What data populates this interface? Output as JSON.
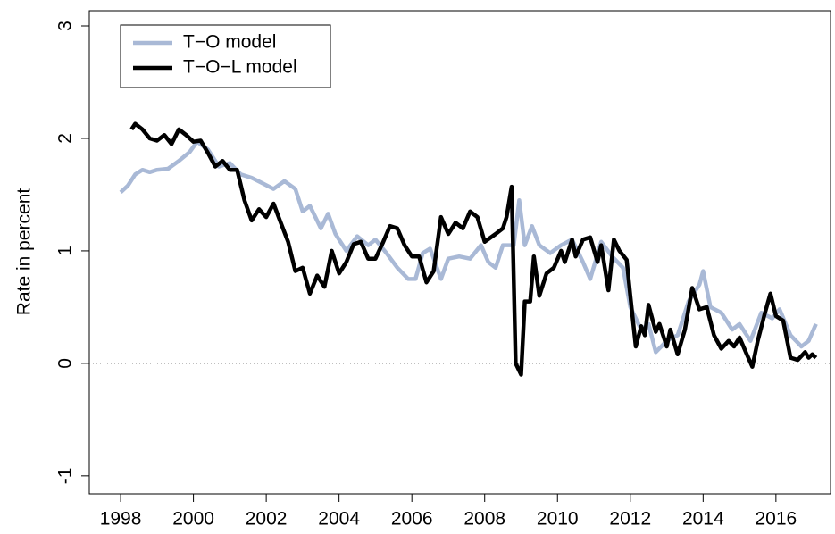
{
  "chart_data": {
    "type": "line",
    "ylabel": "Rate in percent",
    "xlim": [
      1997.14,
      2017.5
    ],
    "ylim": [
      -1.16,
      3.135
    ],
    "xticks": [
      1998,
      2000,
      2002,
      2004,
      2006,
      2008,
      2010,
      2012,
      2014,
      2016
    ],
    "yticks": [
      -1,
      0,
      1,
      2,
      3
    ],
    "reference_line": 0,
    "legend": "top-left",
    "series": [
      {
        "name": "T−O model",
        "color": "#a9b9d6",
        "x": [
          1998.0,
          1998.2,
          1998.4,
          1998.6,
          1998.8,
          1999.0,
          1999.3,
          1999.6,
          1999.9,
          2000.1,
          2000.4,
          2000.7,
          2001.0,
          2001.3,
          2001.6,
          2001.9,
          2002.2,
          2002.5,
          2002.8,
          2003.0,
          2003.2,
          2003.5,
          2003.7,
          2003.9,
          2004.2,
          2004.5,
          2004.8,
          2005.0,
          2005.3,
          2005.6,
          2005.9,
          2006.1,
          2006.3,
          2006.5,
          2006.8,
          2007.0,
          2007.3,
          2007.6,
          2007.9,
          2008.1,
          2008.3,
          2008.5,
          2008.8,
          2008.95,
          2009.1,
          2009.3,
          2009.5,
          2009.8,
          2010.1,
          2010.4,
          2010.7,
          2010.9,
          2011.2,
          2011.5,
          2011.8,
          2012.0,
          2012.3,
          2012.5,
          2012.7,
          2013.0,
          2013.3,
          2013.6,
          2013.9,
          2014.0,
          2014.2,
          2014.5,
          2014.8,
          2015.0,
          2015.3,
          2015.6,
          2015.9,
          2016.1,
          2016.4,
          2016.7,
          2016.9,
          2017.1
        ],
        "values": [
          1.52,
          1.58,
          1.68,
          1.72,
          1.7,
          1.72,
          1.73,
          1.8,
          1.88,
          1.97,
          1.9,
          1.75,
          1.78,
          1.68,
          1.65,
          1.6,
          1.55,
          1.62,
          1.55,
          1.35,
          1.4,
          1.2,
          1.33,
          1.15,
          1.0,
          1.13,
          1.05,
          1.1,
          0.98,
          0.85,
          0.75,
          0.75,
          0.98,
          1.02,
          0.75,
          0.93,
          0.95,
          0.93,
          1.05,
          0.9,
          0.85,
          1.05,
          1.05,
          1.45,
          1.05,
          1.22,
          1.05,
          0.98,
          1.05,
          1.1,
          0.9,
          0.75,
          1.08,
          0.95,
          0.85,
          0.5,
          0.3,
          0.35,
          0.1,
          0.2,
          0.25,
          0.55,
          0.7,
          0.82,
          0.5,
          0.45,
          0.3,
          0.35,
          0.2,
          0.45,
          0.4,
          0.48,
          0.25,
          0.15,
          0.2,
          0.35
        ]
      },
      {
        "name": "T−O−L model",
        "color": "#000000",
        "x": [
          1998.3,
          1998.4,
          1998.6,
          1998.8,
          1999.0,
          1999.2,
          1999.4,
          1999.6,
          1999.8,
          2000.0,
          2000.2,
          2000.4,
          2000.6,
          2000.8,
          2001.0,
          2001.2,
          2001.4,
          2001.6,
          2001.8,
          2002.0,
          2002.2,
          2002.4,
          2002.6,
          2002.8,
          2003.0,
          2003.2,
          2003.4,
          2003.6,
          2003.8,
          2004.0,
          2004.2,
          2004.4,
          2004.6,
          2004.8,
          2005.0,
          2005.2,
          2005.4,
          2005.6,
          2005.8,
          2006.0,
          2006.2,
          2006.4,
          2006.6,
          2006.8,
          2007.0,
          2007.2,
          2007.4,
          2007.6,
          2007.8,
          2008.0,
          2008.3,
          2008.5,
          2008.6,
          2008.74,
          2008.85,
          2009.0,
          2009.1,
          2009.25,
          2009.35,
          2009.5,
          2009.7,
          2009.9,
          2010.1,
          2010.2,
          2010.4,
          2010.5,
          2010.7,
          2010.9,
          2011.1,
          2011.2,
          2011.4,
          2011.55,
          2011.7,
          2011.9,
          2012.0,
          2012.15,
          2012.3,
          2012.4,
          2012.5,
          2012.7,
          2012.8,
          2013.0,
          2013.1,
          2013.3,
          2013.5,
          2013.7,
          2013.9,
          2014.1,
          2014.3,
          2014.5,
          2014.7,
          2014.85,
          2015.0,
          2015.2,
          2015.35,
          2015.5,
          2015.7,
          2015.85,
          2016.0,
          2016.2,
          2016.4,
          2016.6,
          2016.8,
          2016.9,
          2017.0,
          2017.1
        ],
        "values": [
          2.08,
          2.13,
          2.08,
          2.0,
          1.98,
          2.03,
          1.95,
          2.08,
          2.03,
          1.97,
          1.98,
          1.87,
          1.75,
          1.8,
          1.72,
          1.72,
          1.45,
          1.27,
          1.37,
          1.3,
          1.42,
          1.25,
          1.08,
          0.82,
          0.85,
          0.62,
          0.78,
          0.68,
          1.0,
          0.8,
          0.9,
          1.06,
          1.08,
          0.93,
          0.93,
          1.07,
          1.22,
          1.2,
          1.05,
          0.95,
          0.95,
          0.72,
          0.82,
          1.3,
          1.15,
          1.25,
          1.2,
          1.35,
          1.3,
          1.08,
          1.15,
          1.2,
          1.3,
          1.57,
          0.0,
          -0.1,
          0.55,
          0.55,
          0.95,
          0.6,
          0.8,
          0.85,
          1.0,
          0.9,
          1.1,
          0.95,
          1.1,
          1.12,
          0.9,
          1.05,
          0.65,
          1.1,
          1.0,
          0.92,
          0.6,
          0.15,
          0.33,
          0.25,
          0.52,
          0.28,
          0.35,
          0.15,
          0.3,
          0.08,
          0.3,
          0.67,
          0.48,
          0.5,
          0.25,
          0.13,
          0.2,
          0.15,
          0.23,
          0.08,
          -0.03,
          0.2,
          0.45,
          0.62,
          0.42,
          0.38,
          0.05,
          0.03,
          0.1,
          0.05,
          0.08,
          0.05
        ]
      }
    ]
  }
}
